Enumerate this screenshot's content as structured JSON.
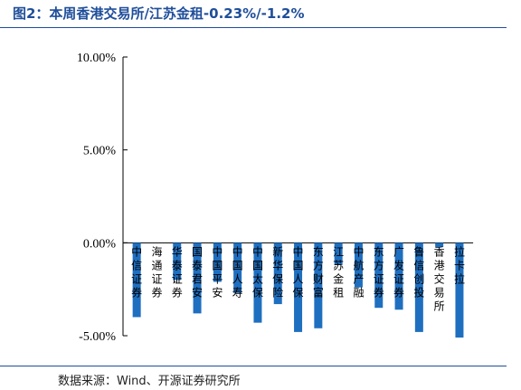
{
  "header": {
    "title": "图2：本周香港交易所/江苏金租-0.23%/-1.2%"
  },
  "footer": {
    "source": "数据来源：Wind、开源证券研究所"
  },
  "colors": {
    "bar": "#1f6fc0",
    "title": "#1f4e9a",
    "axis": "#000000"
  },
  "chart_data": {
    "type": "bar",
    "title": "",
    "xlabel": "",
    "ylabel": "",
    "ylim": [
      -5,
      10
    ],
    "yticks": [
      10,
      5,
      0,
      -5
    ],
    "ytick_labels": [
      "10.00%",
      "5.00%",
      "0.00%",
      "-5.00%"
    ],
    "grid": false,
    "categories": [
      "中信证券",
      "海通证券",
      "华泰证券",
      "国泰君安",
      "中国平安",
      "中国人寿",
      "中国太保",
      "新华保险",
      "中国人保",
      "东方财富",
      "江苏金租",
      "中航产融",
      "东方证券",
      "广发证券",
      "鲁信创投",
      "香港交易所",
      "拉卡拉"
    ],
    "values": [
      -4.0,
      0.0,
      -2.0,
      -3.8,
      -2.1,
      -2.7,
      -4.3,
      -3.3,
      -4.8,
      -4.6,
      -1.2,
      -2.4,
      -3.5,
      -3.6,
      -4.8,
      -0.23,
      -5.1
    ]
  }
}
